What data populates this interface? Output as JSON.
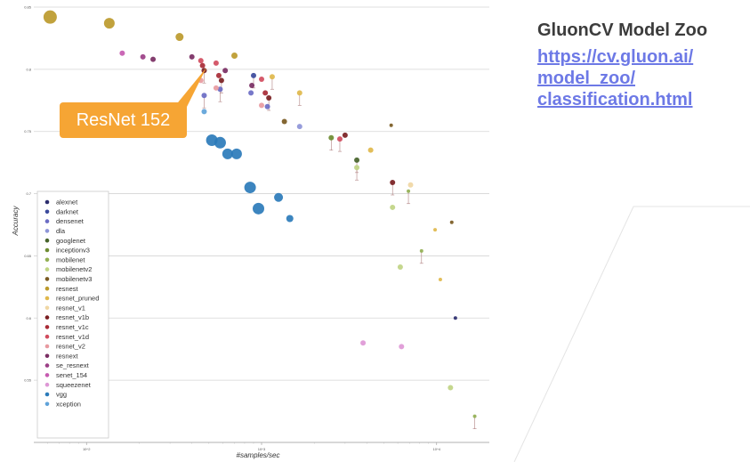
{
  "side_panel": {
    "title": "GluonCV Model Zoo",
    "link_lines": [
      "https://cv.gluon.ai/",
      "model_zoo/",
      "classification.html"
    ]
  },
  "callout": {
    "label": "ResNet 152"
  },
  "chart_data": {
    "type": "scatter",
    "xlabel": "#samples/sec",
    "ylabel": "Accuracy",
    "x_scale": "log",
    "xlim": [
      50,
      20000
    ],
    "ylim": [
      0.5,
      0.85
    ],
    "x_ticks": [
      {
        "value": 100,
        "label": "10^2"
      },
      {
        "value": 1000,
        "label": "10^3"
      },
      {
        "value": 10000,
        "label": "10^4"
      }
    ],
    "y_ticks": [
      {
        "value": 0.55,
        "label": "0.55"
      },
      {
        "value": 0.6,
        "label": "0.6"
      },
      {
        "value": 0.65,
        "label": "0.65"
      },
      {
        "value": 0.7,
        "label": "0.7"
      },
      {
        "value": 0.75,
        "label": "0.75"
      },
      {
        "value": 0.8,
        "label": "0.8"
      },
      {
        "value": 0.85,
        "label": "0.85"
      }
    ],
    "grid": "horizontal",
    "legend_position": "bottom-left",
    "series": [
      {
        "name": "alexnet",
        "color": "#2b2d6e",
        "points": [
          {
            "x": 12800,
            "y": 0.6
          }
        ]
      },
      {
        "name": "darknet",
        "color": "#3b4a9c",
        "points": [
          {
            "x": 900,
            "y": 0.795
          }
        ]
      },
      {
        "name": "densenet",
        "color": "#6b6cc4",
        "points": [
          {
            "x": 470,
            "y": 0.779
          },
          {
            "x": 580,
            "y": 0.784
          },
          {
            "x": 870,
            "y": 0.781
          },
          {
            "x": 1080,
            "y": 0.77
          }
        ]
      },
      {
        "name": "dla",
        "color": "#8e95d8",
        "points": [
          {
            "x": 1650,
            "y": 0.754
          }
        ]
      },
      {
        "name": "googlenet",
        "color": "#46632a",
        "points": [
          {
            "x": 3500,
            "y": 0.727
          }
        ]
      },
      {
        "name": "inceptionv3",
        "color": "#6e8c32",
        "points": [
          {
            "x": 2500,
            "y": 0.745
          }
        ]
      },
      {
        "name": "mobilenet",
        "color": "#93b054",
        "points": [
          {
            "x": 6900,
            "y": 0.702
          },
          {
            "x": 8200,
            "y": 0.654
          },
          {
            "x": 16500,
            "y": 0.521
          }
        ]
      },
      {
        "name": "mobilenetv2",
        "color": "#c0d484",
        "points": [
          {
            "x": 3500,
            "y": 0.721
          },
          {
            "x": 5600,
            "y": 0.689
          },
          {
            "x": 6200,
            "y": 0.641
          },
          {
            "x": 12000,
            "y": 0.544
          }
        ]
      },
      {
        "name": "mobilenetv3",
        "color": "#7a5a22",
        "points": [
          {
            "x": 1350,
            "y": 0.758
          },
          {
            "x": 5500,
            "y": 0.755
          },
          {
            "x": 12200,
            "y": 0.677
          }
        ]
      },
      {
        "name": "resnest",
        "color": "#bc9a2c",
        "points": [
          {
            "x": 62,
            "y": 0.842
          },
          {
            "x": 135,
            "y": 0.837
          },
          {
            "x": 340,
            "y": 0.826
          },
          {
            "x": 700,
            "y": 0.811
          }
        ]
      },
      {
        "name": "resnet_pruned",
        "color": "#e0b84c",
        "points": [
          {
            "x": 1150,
            "y": 0.794
          },
          {
            "x": 1650,
            "y": 0.781
          },
          {
            "x": 4200,
            "y": 0.735
          },
          {
            "x": 9800,
            "y": 0.671
          },
          {
            "x": 10500,
            "y": 0.631
          }
        ]
      },
      {
        "name": "resnet_v1",
        "color": "#f0d7a4",
        "points": [
          {
            "x": 7100,
            "y": 0.707
          }
        ]
      },
      {
        "name": "resnet_v1b",
        "color": "#7a1f22",
        "points": [
          {
            "x": 470,
            "y": 0.799
          },
          {
            "x": 590,
            "y": 0.791
          },
          {
            "x": 1100,
            "y": 0.777
          },
          {
            "x": 3000,
            "y": 0.747
          },
          {
            "x": 5600,
            "y": 0.709
          }
        ]
      },
      {
        "name": "resnet_v1c",
        "color": "#a82b36",
        "points": [
          {
            "x": 460,
            "y": 0.803
          },
          {
            "x": 570,
            "y": 0.795
          },
          {
            "x": 1050,
            "y": 0.781
          }
        ]
      },
      {
        "name": "resnet_v1d",
        "color": "#d14c5e",
        "points": [
          {
            "x": 450,
            "y": 0.807
          },
          {
            "x": 550,
            "y": 0.805
          },
          {
            "x": 1000,
            "y": 0.792
          },
          {
            "x": 2800,
            "y": 0.744
          }
        ]
      },
      {
        "name": "resnet_v2",
        "color": "#e89aa0",
        "points": [
          {
            "x": 450,
            "y": 0.791
          },
          {
            "x": 550,
            "y": 0.785
          },
          {
            "x": 1000,
            "y": 0.771
          }
        ]
      },
      {
        "name": "resnext",
        "color": "#7a2e63",
        "points": [
          {
            "x": 240,
            "y": 0.808
          },
          {
            "x": 400,
            "y": 0.81
          },
          {
            "x": 620,
            "y": 0.799
          },
          {
            "x": 880,
            "y": 0.787
          }
        ]
      },
      {
        "name": "se_resnext",
        "color": "#9b3f86",
        "points": [
          {
            "x": 210,
            "y": 0.81
          }
        ]
      },
      {
        "name": "senet_154",
        "color": "#c65bb0",
        "points": [
          {
            "x": 160,
            "y": 0.813
          }
        ]
      },
      {
        "name": "squeezenet",
        "color": "#de98d6",
        "points": [
          {
            "x": 3800,
            "y": 0.58
          },
          {
            "x": 6300,
            "y": 0.577
          }
        ]
      },
      {
        "name": "vgg",
        "color": "#2b7bba",
        "points": [
          {
            "x": 520,
            "y": 0.743
          },
          {
            "x": 580,
            "y": 0.741
          },
          {
            "x": 640,
            "y": 0.732
          },
          {
            "x": 720,
            "y": 0.732
          },
          {
            "x": 860,
            "y": 0.705
          },
          {
            "x": 960,
            "y": 0.688
          },
          {
            "x": 1250,
            "y": 0.697
          },
          {
            "x": 1450,
            "y": 0.68
          }
        ]
      },
      {
        "name": "xception",
        "color": "#60a3d9",
        "points": [
          {
            "x": 470,
            "y": 0.766
          }
        ]
      }
    ]
  }
}
